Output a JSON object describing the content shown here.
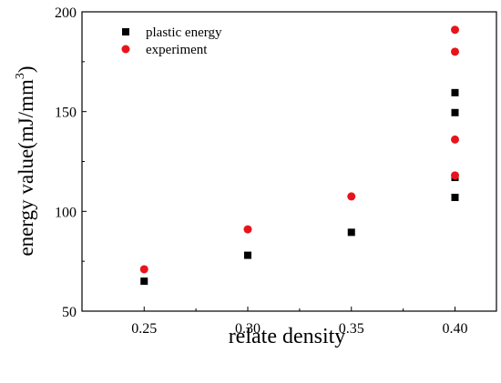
{
  "chart_data": {
    "type": "scatter",
    "title": "",
    "xlabel": "relate density",
    "ylabel_main": "energy value(mJ/mm",
    "ylabel_sup": "3",
    "ylabel_close": ")",
    "xlim": [
      0.22,
      0.42
    ],
    "ylim": [
      50,
      200
    ],
    "xticks": [
      0.25,
      0.3,
      0.35,
      0.4
    ],
    "xtick_labels": [
      "0.25",
      "0.30",
      "0.35",
      "0.40"
    ],
    "yticks": [
      50,
      100,
      150,
      200
    ],
    "ytick_labels": [
      "50",
      "100",
      "150",
      "200"
    ],
    "grid": false,
    "legend_position": "top-left",
    "series": [
      {
        "name": "plastic energy",
        "marker": "square",
        "color": "#000000",
        "points": [
          {
            "x": 0.25,
            "y": 65
          },
          {
            "x": 0.3,
            "y": 78
          },
          {
            "x": 0.35,
            "y": 89.5
          },
          {
            "x": 0.4,
            "y": 107
          },
          {
            "x": 0.4,
            "y": 117
          },
          {
            "x": 0.4,
            "y": 149.5
          },
          {
            "x": 0.4,
            "y": 159.5
          }
        ]
      },
      {
        "name": "experiment",
        "marker": "circle",
        "color": "#e8141b",
        "points": [
          {
            "x": 0.25,
            "y": 71
          },
          {
            "x": 0.3,
            "y": 91
          },
          {
            "x": 0.35,
            "y": 107.5
          },
          {
            "x": 0.4,
            "y": 118
          },
          {
            "x": 0.4,
            "y": 136
          },
          {
            "x": 0.4,
            "y": 180
          },
          {
            "x": 0.4,
            "y": 191
          }
        ]
      }
    ]
  }
}
